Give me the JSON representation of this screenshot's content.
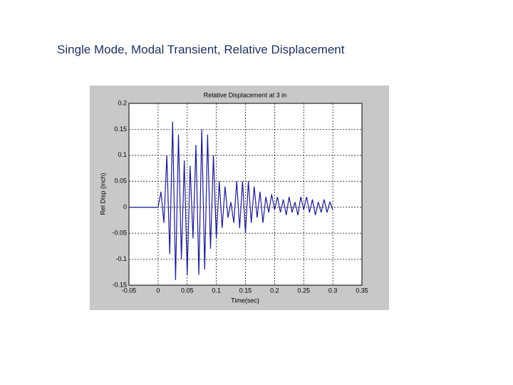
{
  "heading": "Single Mode, Modal Transient, Relative Displacement",
  "chart_data": {
    "type": "line",
    "title": "Relative Displacement at 3 in",
    "xlabel": "Time(sec)",
    "ylabel": "Rel Disp (inch)",
    "x": [
      -0.05,
      0,
      0.005,
      0.01,
      0.015,
      0.02,
      0.025,
      0.03,
      0.035,
      0.04,
      0.045,
      0.05,
      0.055,
      0.06,
      0.065,
      0.07,
      0.075,
      0.08,
      0.085,
      0.09,
      0.095,
      0.1,
      0.105,
      0.11,
      0.115,
      0.12,
      0.125,
      0.13,
      0.135,
      0.14,
      0.145,
      0.15,
      0.155,
      0.16,
      0.165,
      0.17,
      0.175,
      0.18,
      0.185,
      0.19,
      0.195,
      0.2,
      0.205,
      0.21,
      0.215,
      0.22,
      0.225,
      0.23,
      0.235,
      0.24,
      0.245,
      0.25,
      0.255,
      0.26,
      0.265,
      0.27,
      0.275,
      0.28,
      0.285,
      0.29,
      0.295,
      0.3
    ],
    "series": [
      {
        "name": "Relative Displacement",
        "color": "#1a1a8c",
        "values": [
          0,
          0,
          0.03,
          -0.03,
          0.1,
          -0.09,
          0.165,
          -0.14,
          0.14,
          -0.1,
          0.09,
          -0.13,
          0.08,
          -0.06,
          0.12,
          -0.13,
          0.15,
          -0.12,
          0.14,
          -0.08,
          0.1,
          -0.06,
          0.05,
          -0.04,
          0.04,
          -0.02,
          0.01,
          -0.03,
          0.05,
          -0.04,
          0.05,
          -0.05,
          0.05,
          -0.03,
          0.04,
          -0.02,
          0.03,
          -0.03,
          0.02,
          -0.01,
          0.025,
          -0.005,
          0.02,
          -0.01,
          0.015,
          -0.015,
          0.02,
          -0.01,
          0.01,
          -0.015,
          0.02,
          -0.005,
          0.02,
          -0.01,
          0.015,
          -0.015,
          0.01,
          -0.01,
          0.015,
          -0.01,
          0.01,
          -0.005
        ]
      }
    ],
    "xlim": [
      -0.05,
      0.35
    ],
    "xticks": [
      -0.05,
      0,
      0.05,
      0.1,
      0.15,
      0.2,
      0.25,
      0.3,
      0.35
    ],
    "ylim": [
      -0.15,
      0.2
    ],
    "yticks": [
      -0.15,
      -0.1,
      -0.05,
      0,
      0.05,
      0.1,
      0.15,
      0.2
    ],
    "grid": true
  }
}
